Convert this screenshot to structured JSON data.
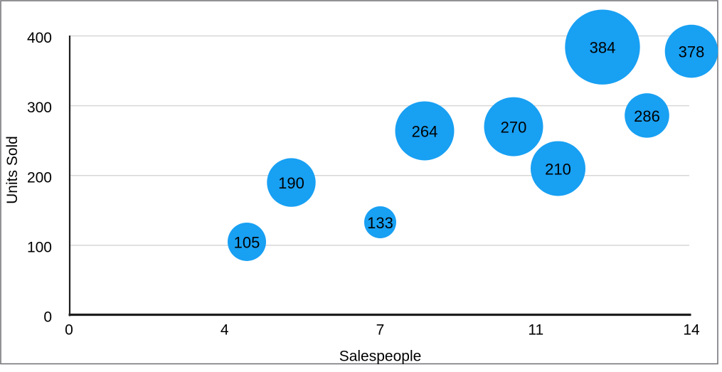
{
  "figure": {
    "background": "#FFFFFF",
    "border_color": "#6E6E73"
  },
  "chart_data": {
    "type": "scatter",
    "subtype": "bubble",
    "title": "",
    "xlabel": "Salespeople",
    "ylabel": "Units Sold",
    "xlim": [
      0,
      14
    ],
    "ylim": [
      0,
      400
    ],
    "grid": true,
    "legend": false,
    "x_ticks": [
      {
        "value": 0,
        "label": "0"
      },
      {
        "value": 3.5,
        "label": "4"
      },
      {
        "value": 7,
        "label": "7"
      },
      {
        "value": 10.5,
        "label": "11"
      },
      {
        "value": 14,
        "label": "14"
      }
    ],
    "y_ticks": [
      {
        "value": 0,
        "label": "0"
      },
      {
        "value": 100,
        "label": "100"
      },
      {
        "value": 200,
        "label": "200"
      },
      {
        "value": 300,
        "label": "300"
      },
      {
        "value": 400,
        "label": "400"
      }
    ],
    "series": [
      {
        "name": "Units Sold",
        "color": "#18A0F3",
        "points": [
          {
            "x": 4,
            "y": 105,
            "label": "105",
            "bubble_radius_px": 27
          },
          {
            "x": 5,
            "y": 190,
            "label": "190",
            "bubble_radius_px": 34.2
          },
          {
            "x": 7,
            "y": 133,
            "label": "133",
            "bubble_radius_px": 22.5
          },
          {
            "x": 8,
            "y": 264,
            "label": "264",
            "bubble_radius_px": 41.5
          },
          {
            "x": 10,
            "y": 270,
            "label": "270",
            "bubble_radius_px": 41.5
          },
          {
            "x": 11,
            "y": 210,
            "label": "210",
            "bubble_radius_px": 38.5
          },
          {
            "x": 12,
            "y": 384,
            "label": "384",
            "bubble_radius_px": 52.7
          },
          {
            "x": 13,
            "y": 286,
            "label": "286",
            "bubble_radius_px": 31.3
          },
          {
            "x": 14,
            "y": 378,
            "label": "378",
            "bubble_radius_px": 37.3
          }
        ]
      }
    ],
    "colors": {
      "bubble": "#18A0F3",
      "gridline": "#D7D7D7",
      "axis_line": "#1E1E1E",
      "text": "#000000"
    }
  }
}
